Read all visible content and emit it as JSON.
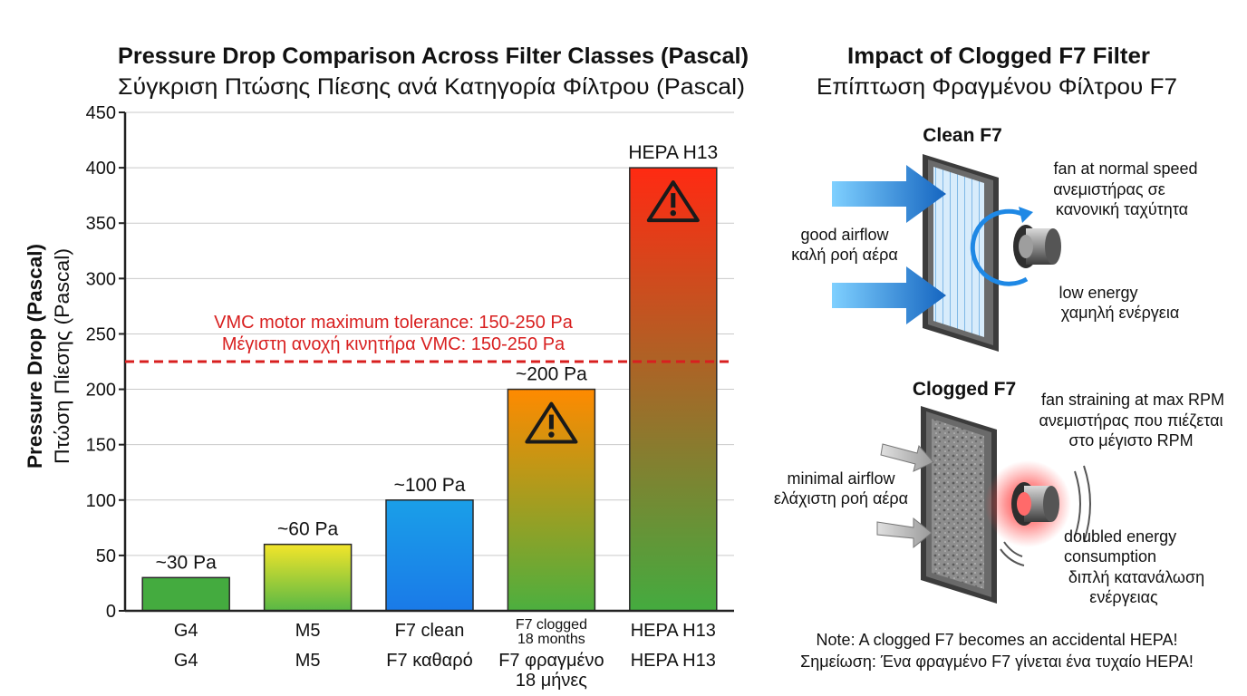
{
  "chart_data": {
    "type": "bar",
    "title": "Pressure Drop Comparison Across Filter Classes (Pascal)",
    "subtitle": "Σύγκριση Πτώσης Πίεσης ανά Κατηγορία Φίλτρου (Pascal)",
    "ylabel": "Pressure Drop (Pascal)",
    "ylabel_alt": "Πτώση Πίεσης (Pascal)",
    "ylim": [
      0,
      450
    ],
    "yticks": [
      0,
      50,
      100,
      150,
      200,
      250,
      300,
      350,
      400,
      450
    ],
    "grid": true,
    "categories": [
      {
        "label": "G4",
        "label_alt": "G4"
      },
      {
        "label": "M5",
        "label_alt": "M5"
      },
      {
        "label": "F7 clean",
        "label_alt": "F7 καθαρό"
      },
      {
        "label": "F7 clogged\n18 months",
        "label_alt": "F7 φραγμένο\n18 μήνες"
      },
      {
        "label": "HEPA H13",
        "label_alt": "HEPA H13"
      }
    ],
    "values": [
      30,
      60,
      100,
      200,
      400
    ],
    "data_labels": [
      "~30 Pa",
      "~60 Pa",
      "~100 Pa",
      "~200 Pa",
      "HEPA H13"
    ],
    "warning_bars": [
      3,
      4
    ],
    "bar_colors": [
      {
        "top": "#44ab3f",
        "bottom": "#44ab3f"
      },
      {
        "top": "#f3e52a",
        "bottom": "#58b845"
      },
      {
        "top": "#1a9fe8",
        "bottom": "#1a7ae8"
      },
      {
        "top": "#ff8a00",
        "bottom": "#4caf3f"
      },
      {
        "top": "#ff2a12",
        "bottom": "#44ab3f"
      }
    ],
    "threshold": {
      "value": 225,
      "label": "VMC motor maximum tolerance: 150-250 Pa",
      "label_alt": "Μέγιστη ανοχή κινητήρα VMC: 150-250 Pa",
      "color": "#d81f1f"
    }
  },
  "panel": {
    "title": "Impact of Clogged F7 Filter",
    "subtitle": "Επίπτωση Φραγμένου Φίλτρου F7",
    "clean": {
      "title": "Clean F7",
      "airflow": "good airflow",
      "airflow_alt": "καλή ροή αέρα",
      "fan": "fan at normal speed",
      "fan_alt_1": "ανεμιστήρας σε",
      "fan_alt_2": "κανονική ταχύτητα",
      "energy": "low energy",
      "energy_alt": "χαμηλή ενέργεια"
    },
    "clogged": {
      "title": "Clogged F7",
      "airflow": "minimal airflow",
      "airflow_alt": "ελάχιστη ροή αέρα",
      "fan": "fan straining at max RPM",
      "fan_alt_1": "ανεμιστήρας που πιέζεται",
      "fan_alt_2": "στο μέγιστο RPM",
      "energy_1": "doubled energy",
      "energy_2": "consumption",
      "energy_alt_1": "διπλή κατανάλωση",
      "energy_alt_2": "ενέργειας"
    },
    "note": "Note: A clogged F7 becomes an accidental HEPA!",
    "note_alt": "Σημείωση: Ένα φραγμένο F7 γίνεται ένα τυχαίο HEPA!",
    "colors": {
      "arrow": "#1e88e5",
      "warn_glow": "#ff2020"
    }
  }
}
